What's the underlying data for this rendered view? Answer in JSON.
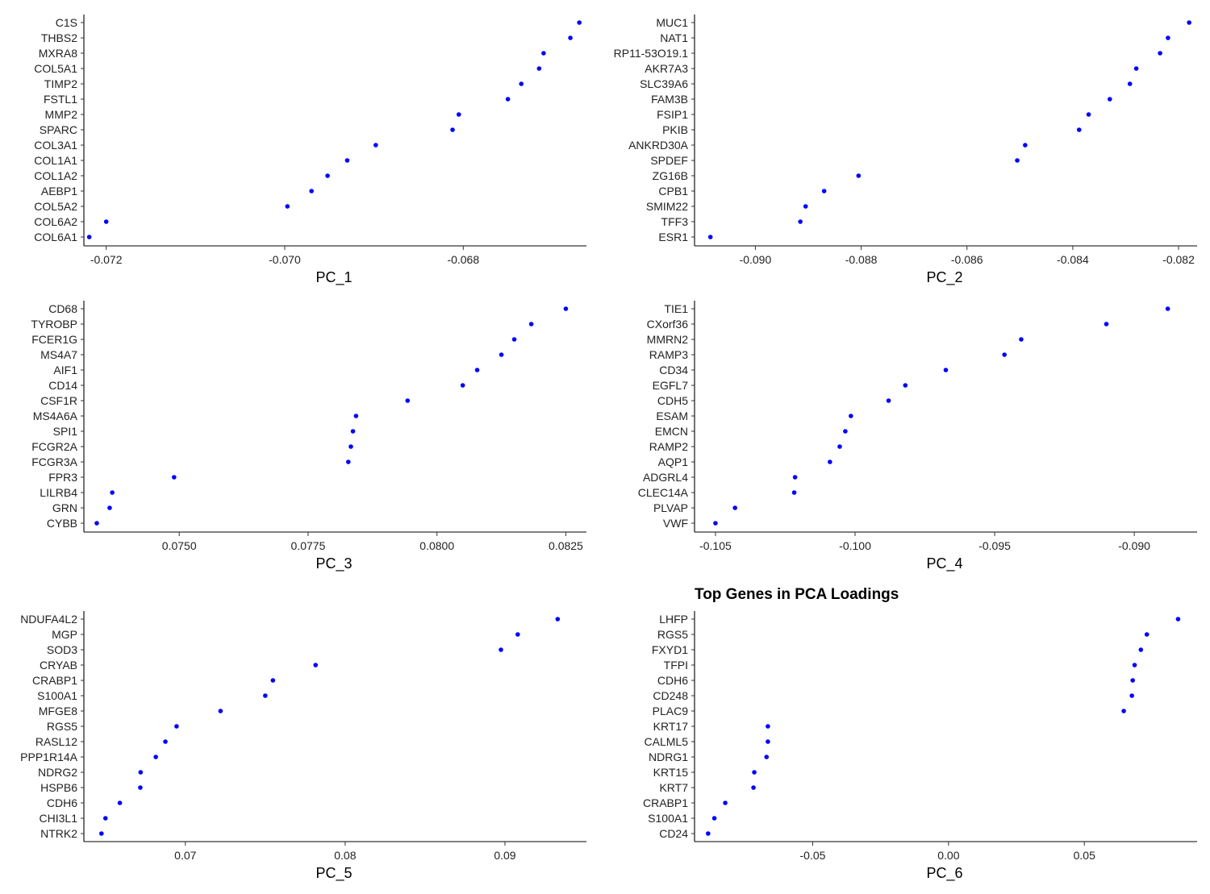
{
  "figure": {
    "title": "Top Genes in PCA Loadings",
    "point_color": "#0000ff"
  },
  "chart_data": [
    {
      "type": "scatter",
      "xlabel": "PC_1",
      "ylabel": "",
      "xlim": [
        -0.07225,
        -0.06662
      ],
      "xticks": [
        -0.072,
        -0.07,
        -0.068
      ],
      "tick_labels": [
        "-0.072",
        "-0.070",
        "-0.068"
      ],
      "genes": [
        "C1S",
        "THBS2",
        "MXRA8",
        "COL5A1",
        "TIMP2",
        "FSTL1",
        "MMP2",
        "SPARC",
        "COL3A1",
        "COL1A1",
        "COL1A2",
        "AEBP1",
        "COL5A2",
        "COL6A2",
        "COL6A1"
      ],
      "values": [
        -0.0667,
        -0.0668,
        -0.0671,
        -0.06715,
        -0.06735,
        -0.0675,
        -0.06805,
        -0.06812,
        -0.06898,
        -0.0693,
        -0.06952,
        -0.0697,
        -0.06997,
        -0.072,
        -0.07219
      ]
    },
    {
      "type": "scatter",
      "xlabel": "PC_2",
      "ylabel": "",
      "xlim": [
        -0.09115,
        -0.08165
      ],
      "xticks": [
        -0.09,
        -0.088,
        -0.086,
        -0.084,
        -0.082
      ],
      "tick_labels": [
        "-0.090",
        "-0.088",
        "-0.086",
        "-0.084",
        "-0.082"
      ],
      "genes": [
        "MUC1",
        "NAT1",
        "RP11-53O19.1",
        "AKR7A3",
        "SLC39A6",
        "FAM3B",
        "FSIP1",
        "PKIB",
        "ANKRD30A",
        "SPDEF",
        "ZG16B",
        "CPB1",
        "SMIM22",
        "TFF3",
        "ESR1"
      ],
      "values": [
        -0.0818,
        -0.0822,
        -0.08235,
        -0.0828,
        -0.08292,
        -0.0833,
        -0.0837,
        -0.08388,
        -0.0849,
        -0.08505,
        -0.08805,
        -0.0887,
        -0.08905,
        -0.08915,
        -0.09085
      ]
    },
    {
      "type": "scatter",
      "xlabel": "PC_3",
      "ylabel": "",
      "xlim": [
        0.07315,
        0.0829
      ],
      "xticks": [
        0.075,
        0.0775,
        0.08,
        0.0825
      ],
      "tick_labels": [
        "0.0750",
        "0.0775",
        "0.0800",
        "0.0825"
      ],
      "genes": [
        "CD68",
        "TYROBP",
        "FCER1G",
        "MS4A7",
        "AIF1",
        "CD14",
        "CSF1R",
        "MS4A6A",
        "SPI1",
        "FCGR2A",
        "FCGR3A",
        "FPR3",
        "LILRB4",
        "GRN",
        "CYBB"
      ],
      "values": [
        0.0825,
        0.08183,
        0.0815,
        0.08125,
        0.08078,
        0.0805,
        0.07943,
        0.07843,
        0.07837,
        0.07833,
        0.07828,
        0.0749,
        0.0737,
        0.07365,
        0.0734
      ]
    },
    {
      "type": "scatter",
      "xlabel": "PC_4",
      "ylabel": "",
      "xlim": [
        -0.10575,
        -0.08775
      ],
      "xticks": [
        -0.105,
        -0.1,
        -0.095,
        -0.09
      ],
      "tick_labels": [
        "-0.105",
        "-0.100",
        "-0.095",
        "-0.090"
      ],
      "genes": [
        "TIE1",
        "CXorf36",
        "MMRN2",
        "RAMP3",
        "CD34",
        "EGFL7",
        "CDH5",
        "ESAM",
        "EMCN",
        "RAMP2",
        "AQP1",
        "ADGRL4",
        "CLEC14A",
        "PLVAP",
        "VWF"
      ],
      "values": [
        -0.0888,
        -0.091,
        -0.09405,
        -0.09465,
        -0.09675,
        -0.0982,
        -0.0988,
        -0.10015,
        -0.10035,
        -0.10055,
        -0.1009,
        -0.10215,
        -0.10218,
        -0.1043,
        -0.105
      ]
    },
    {
      "type": "scatter",
      "xlabel": "PC_5",
      "ylabel": "",
      "xlim": [
        0.06365,
        0.0951
      ],
      "xticks": [
        0.07,
        0.08,
        0.09
      ],
      "tick_labels": [
        "0.07",
        "0.08",
        "0.09"
      ],
      "genes": [
        "NDUFA4L2",
        "MGP",
        "SOD3",
        "CRYAB",
        "CRABP1",
        "S100A1",
        "MFGE8",
        "RGS5",
        "RASL12",
        "PPP1R14A",
        "NDRG2",
        "HSPB6",
        "CDH6",
        "CHI3L1",
        "NTRK2"
      ],
      "values": [
        0.0933,
        0.0908,
        0.08975,
        0.07815,
        0.07548,
        0.075,
        0.0722,
        0.06945,
        0.06875,
        0.06815,
        0.0672,
        0.06718,
        0.0659,
        0.065,
        0.06475
      ]
    },
    {
      "type": "scatter",
      "xlabel": "PC_6",
      "ylabel": "",
      "xlim": [
        -0.0935,
        0.0915
      ],
      "xticks": [
        -0.05,
        0.0,
        0.05
      ],
      "tick_labels": [
        "-0.05",
        "0.00",
        "0.05"
      ],
      "genes": [
        "LHFP",
        "RGS5",
        "FXYD1",
        "TFPI",
        "CDH6",
        "CD248",
        "PLAC9",
        "KRT17",
        "CALML5",
        "NDRG1",
        "KRT15",
        "KRT7",
        "CRABP1",
        "S100A1",
        "CD24"
      ],
      "values": [
        0.0845,
        0.073,
        0.0708,
        0.0685,
        0.0678,
        0.0675,
        0.0645,
        -0.0665,
        -0.0665,
        -0.067,
        -0.0715,
        -0.0718,
        -0.0822,
        -0.0862,
        -0.0885
      ]
    }
  ]
}
